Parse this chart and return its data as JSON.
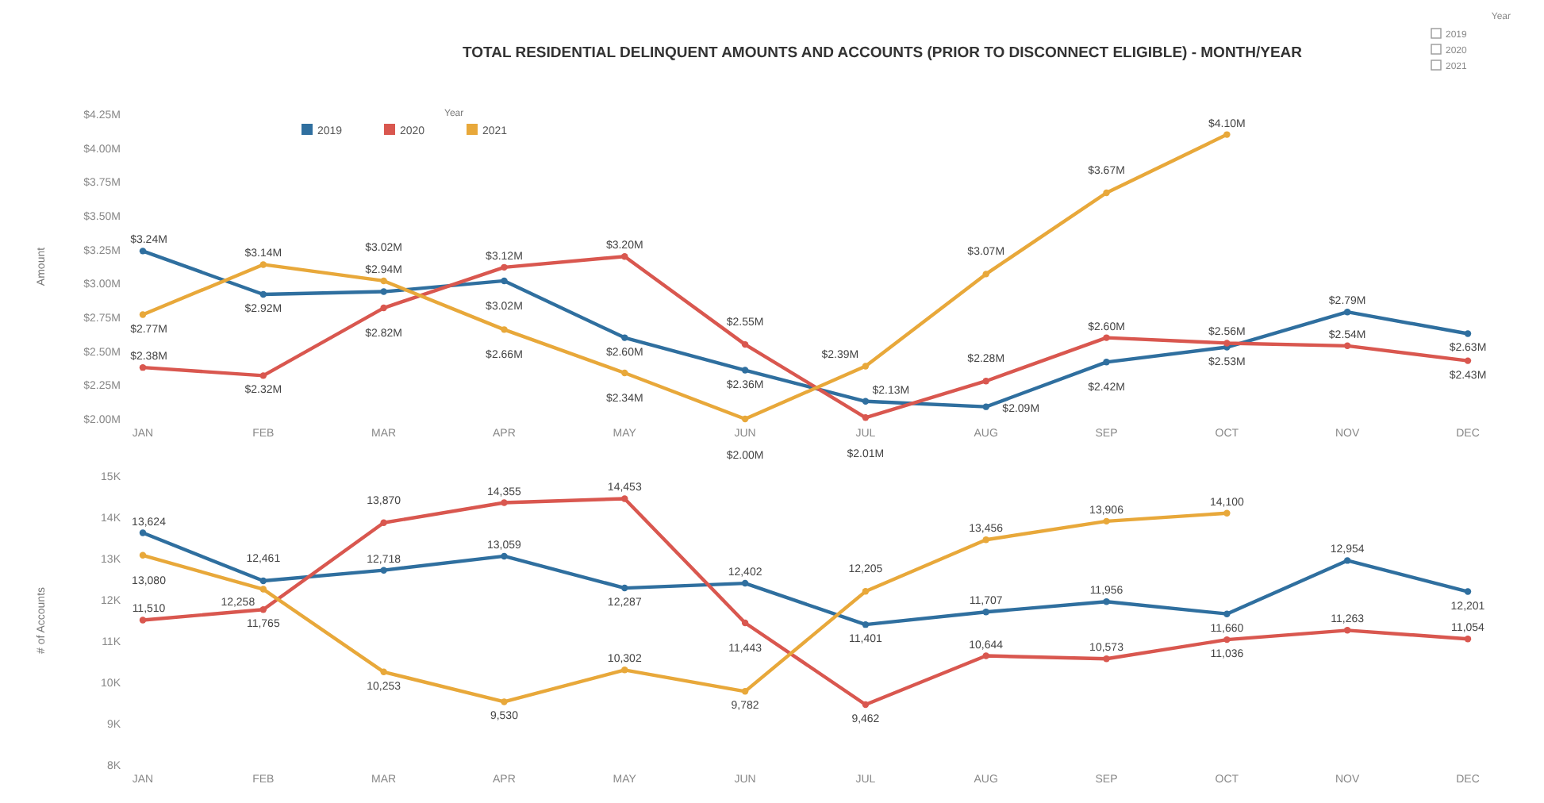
{
  "chart_data": [
    {
      "type": "line",
      "title": "TOTAL RESIDENTIAL DELINQUENT AMOUNTS AND ACCOUNTS  (PRIOR TO DISCONNECT ELIGIBLE) -  MONTH/YEAR",
      "ylabel": "Amount",
      "legend_title": "Year",
      "legend": "top",
      "marker": "circle",
      "annotations": [
        "Year",
        "2019",
        "2020",
        "2021"
      ],
      "categories": [
        "JAN",
        "FEB",
        "MAR",
        "APR",
        "MAY",
        "JUN",
        "JUL",
        "AUG",
        "SEP",
        "OCT",
        "NOV",
        "DEC"
      ],
      "ylim": [
        2,
        4.25
      ],
      "yticks": [
        {
          "value": 2,
          "label": "$2.00M"
        },
        {
          "value": 2.25,
          "label": "$2.25M"
        },
        {
          "value": 2.5,
          "label": "$2.50M"
        },
        {
          "value": 2.75,
          "label": "$2.75M"
        },
        {
          "value": 3,
          "label": "$3.00M"
        },
        {
          "value": 3.25,
          "label": "$3.25M"
        },
        {
          "value": 3.5,
          "label": "$3.50M"
        },
        {
          "value": 3.75,
          "label": "$3.75M"
        },
        {
          "value": 4,
          "label": "$4.00M"
        },
        {
          "value": 4.25,
          "label": "$4.25M"
        }
      ],
      "series": [
        {
          "name": "2019",
          "color": "#2f6f9f",
          "values": [
            3.24,
            2.92,
            2.94,
            3.02,
            2.6,
            2.36,
            2.13,
            2.09,
            2.42,
            2.53,
            2.79,
            2.63
          ],
          "value_labels": [
            "$3.24M",
            "$2.92M",
            "$2.94M",
            "$3.02M",
            "$2.60M",
            "$2.36M",
            "$2.13M",
            "$2.09M",
            "$2.42M",
            "$2.53M",
            "$2.79M",
            "$2.63M"
          ]
        },
        {
          "name": "2020",
          "color": "#d9574f",
          "values": [
            2.38,
            2.32,
            2.82,
            3.12,
            3.2,
            2.55,
            2.01,
            2.28,
            2.6,
            2.56,
            2.54,
            2.43
          ],
          "value_labels": [
            "$2.38M",
            "$2.32M",
            "$2.82M",
            "$3.12M",
            "$3.20M",
            "$2.55M",
            "$2.01M",
            "$2.28M",
            "$2.60M",
            "$2.56M",
            "$2.54M",
            "$2.43M"
          ]
        },
        {
          "name": "2021",
          "color": "#e8a83a",
          "values": [
            2.77,
            3.14,
            3.02,
            2.66,
            2.34,
            2.0,
            2.39,
            3.07,
            3.67,
            4.1,
            null,
            null
          ],
          "value_labels": [
            "$2.77M",
            "$3.14M",
            "$3.02M",
            "$2.66M",
            "$2.34M",
            "$2.00M",
            "$2.39M",
            "$3.07M",
            "$3.67M",
            "$4.10M",
            null,
            null
          ]
        }
      ]
    },
    {
      "type": "line",
      "ylabel": "# of Accounts",
      "marker": "circle",
      "categories": [
        "JAN",
        "FEB",
        "MAR",
        "APR",
        "MAY",
        "JUN",
        "JUL",
        "AUG",
        "SEP",
        "OCT",
        "NOV",
        "DEC"
      ],
      "ylim": [
        8000,
        15000
      ],
      "yticks": [
        {
          "value": 8000,
          "label": "8K"
        },
        {
          "value": 9000,
          "label": "9K"
        },
        {
          "value": 10000,
          "label": "10K"
        },
        {
          "value": 11000,
          "label": "11K"
        },
        {
          "value": 12000,
          "label": "12K"
        },
        {
          "value": 13000,
          "label": "13K"
        },
        {
          "value": 14000,
          "label": "14K"
        },
        {
          "value": 15000,
          "label": "15K"
        }
      ],
      "series": [
        {
          "color": "#2f6f9f",
          "values": [
            13624,
            12461,
            12718,
            13059,
            12287,
            12402,
            11401,
            11707,
            11956,
            11660,
            12954,
            12201
          ],
          "value_labels": [
            "13,624",
            "12,461",
            "12,718",
            "13,059",
            "12,287",
            "12,402",
            "11,401",
            "11,707",
            "11,956",
            "11,660",
            "12,954",
            "12,201"
          ]
        },
        {
          "color": "#d9574f",
          "values": [
            11510,
            11765,
            13870,
            14355,
            14453,
            11443,
            9462,
            10644,
            10573,
            11036,
            11263,
            11054
          ],
          "value_labels": [
            "11,510",
            "11,765",
            "13,870",
            "14,355",
            "14,453",
            "11,443",
            "9,462",
            "10,644",
            "10,573",
            "11,036",
            "11,263",
            "11,054"
          ]
        },
        {
          "color": "#e8a83a",
          "values": [
            13080,
            12258,
            10253,
            9530,
            10302,
            9782,
            12205,
            13456,
            13906,
            14100,
            null,
            null
          ],
          "value_labels": [
            "13,080",
            "12,258",
            "10,253",
            "9,530",
            "10,302",
            "9,782",
            "12,205",
            "13,456",
            "13,906",
            "14,100",
            null,
            null
          ]
        }
      ]
    }
  ]
}
